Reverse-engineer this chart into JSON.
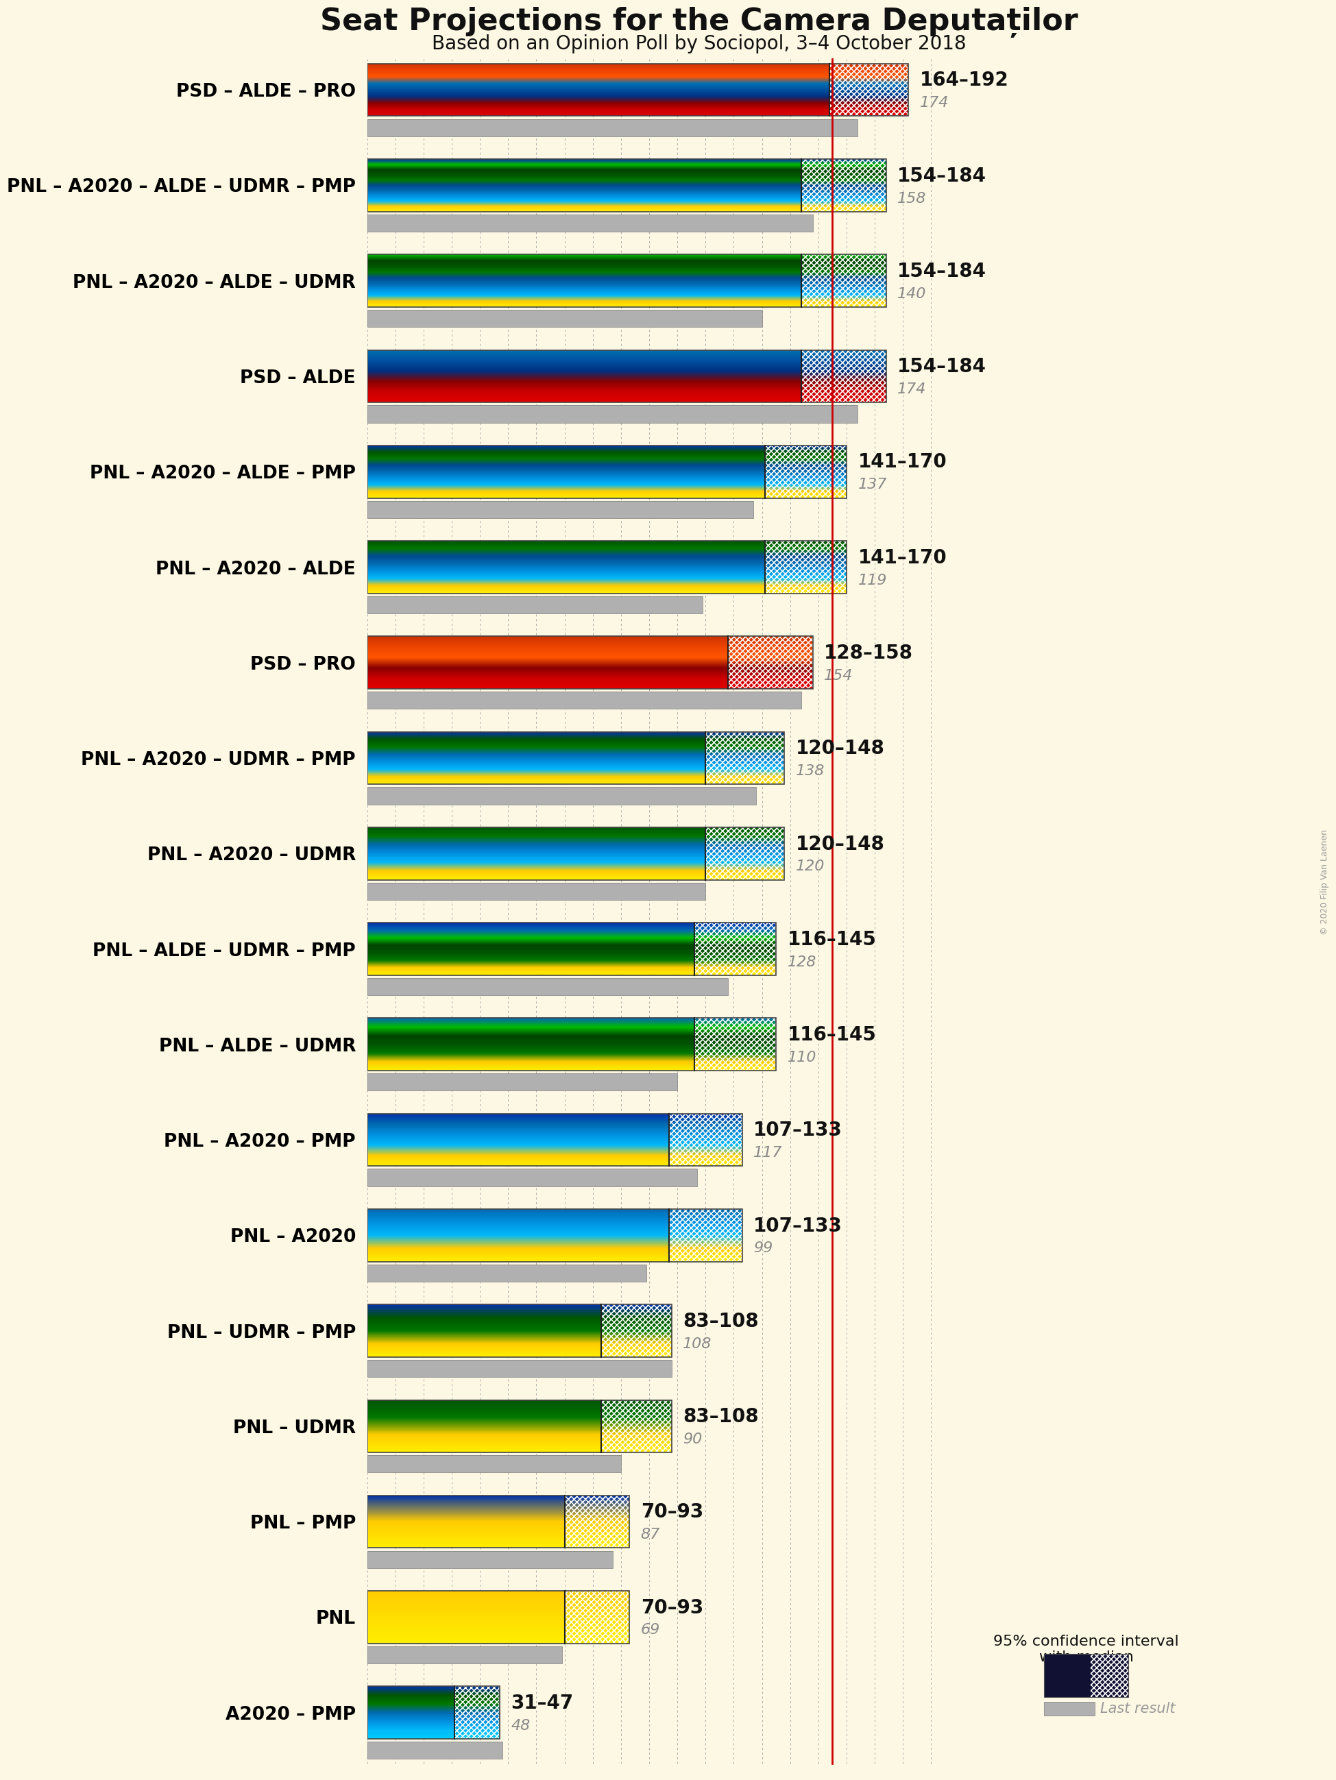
{
  "title": "Seat Projections for the Camera Deputaților",
  "subtitle": "Based on an Opinion Poll by Sociopol, 3–4 October 2018",
  "copyright": "© 2020 Filip Van Laenen",
  "background_color": "#fdf8e4",
  "majority_line": 165,
  "xmax": 200,
  "coalitions": [
    {
      "name": "PSD – ALDE – PRO",
      "ci_low": 164,
      "ci_high": 192,
      "median": 174,
      "last_result": 174,
      "underline": false,
      "bar_colors": [
        "#e00000",
        "#cc0000",
        "#880000",
        "#003080",
        "#0050a0",
        "#0070b0",
        "#ff5500",
        "#ee4400",
        "#cc3300"
      ]
    },
    {
      "name": "PNL – A2020 – ALDE – UDMR – PMP",
      "ci_low": 154,
      "ci_high": 184,
      "median": 158,
      "last_result": 158,
      "underline": true,
      "bar_colors": [
        "#ffee00",
        "#ffcc00",
        "#00b8f8",
        "#0090e0",
        "#006ab0",
        "#004a90",
        "#007700",
        "#005500",
        "#004400",
        "#00bb00",
        "#0033aa"
      ]
    },
    {
      "name": "PNL – A2020 – ALDE – UDMR",
      "ci_low": 154,
      "ci_high": 184,
      "median": 140,
      "last_result": 140,
      "underline": false,
      "bar_colors": [
        "#ffee00",
        "#ffcc00",
        "#00b8f8",
        "#0090e0",
        "#006ab0",
        "#004a90",
        "#007700",
        "#005500",
        "#004400",
        "#00bb00"
      ]
    },
    {
      "name": "PSD – ALDE",
      "ci_low": 154,
      "ci_high": 184,
      "median": 174,
      "last_result": 174,
      "underline": false,
      "bar_colors": [
        "#e00000",
        "#cc0000",
        "#880000",
        "#003080",
        "#0050a0",
        "#0070b0"
      ]
    },
    {
      "name": "PNL – A2020 – ALDE – PMP",
      "ci_low": 141,
      "ci_high": 170,
      "median": 137,
      "last_result": 137,
      "underline": false,
      "bar_colors": [
        "#ffee00",
        "#ffcc00",
        "#00b8f8",
        "#0090e0",
        "#006ab0",
        "#004a90",
        "#007700",
        "#005500",
        "#0033aa"
      ]
    },
    {
      "name": "PNL – A2020 – ALDE",
      "ci_low": 141,
      "ci_high": 170,
      "median": 119,
      "last_result": 119,
      "underline": false,
      "bar_colors": [
        "#ffee00",
        "#ffcc00",
        "#00b8f8",
        "#0090e0",
        "#006ab0",
        "#004a90",
        "#007700",
        "#005500"
      ]
    },
    {
      "name": "PSD – PRO",
      "ci_low": 128,
      "ci_high": 158,
      "median": 154,
      "last_result": 154,
      "underline": false,
      "bar_colors": [
        "#e00000",
        "#cc0000",
        "#880000",
        "#ff5500",
        "#ee4400",
        "#cc3300"
      ]
    },
    {
      "name": "PNL – A2020 – UDMR – PMP",
      "ci_low": 120,
      "ci_high": 148,
      "median": 138,
      "last_result": 138,
      "underline": false,
      "bar_colors": [
        "#ffee00",
        "#ffcc00",
        "#00b8f8",
        "#0090e0",
        "#006ab0",
        "#007700",
        "#005500",
        "#0033aa"
      ]
    },
    {
      "name": "PNL – A2020 – UDMR",
      "ci_low": 120,
      "ci_high": 148,
      "median": 120,
      "last_result": 120,
      "underline": false,
      "bar_colors": [
        "#ffee00",
        "#ffcc00",
        "#00b8f8",
        "#0090e0",
        "#006ab0",
        "#007700",
        "#005500"
      ]
    },
    {
      "name": "PNL – ALDE – UDMR – PMP",
      "ci_low": 116,
      "ci_high": 145,
      "median": 128,
      "last_result": 128,
      "underline": false,
      "bar_colors": [
        "#ffee00",
        "#ffcc00",
        "#007700",
        "#005500",
        "#004400",
        "#00bb00",
        "#006ab0",
        "#0033aa"
      ]
    },
    {
      "name": "PNL – ALDE – UDMR",
      "ci_low": 116,
      "ci_high": 145,
      "median": 110,
      "last_result": 110,
      "underline": false,
      "bar_colors": [
        "#ffee00",
        "#ffcc00",
        "#007700",
        "#005500",
        "#004400",
        "#00bb00",
        "#006ab0"
      ]
    },
    {
      "name": "PNL – A2020 – PMP",
      "ci_low": 107,
      "ci_high": 133,
      "median": 117,
      "last_result": 117,
      "underline": false,
      "bar_colors": [
        "#ffee00",
        "#ffcc00",
        "#00b8f8",
        "#0090e0",
        "#006ab0",
        "#0033aa"
      ]
    },
    {
      "name": "PNL – A2020",
      "ci_low": 107,
      "ci_high": 133,
      "median": 99,
      "last_result": 99,
      "underline": false,
      "bar_colors": [
        "#ffee00",
        "#ffcc00",
        "#00b8f8",
        "#0090e0",
        "#006ab0"
      ]
    },
    {
      "name": "PNL – UDMR – PMP",
      "ci_low": 83,
      "ci_high": 108,
      "median": 108,
      "last_result": 108,
      "underline": false,
      "bar_colors": [
        "#ffee00",
        "#ffcc00",
        "#007700",
        "#005500",
        "#0033aa"
      ]
    },
    {
      "name": "PNL – UDMR",
      "ci_low": 83,
      "ci_high": 108,
      "median": 90,
      "last_result": 90,
      "underline": false,
      "bar_colors": [
        "#ffee00",
        "#ffcc00",
        "#007700",
        "#005500"
      ]
    },
    {
      "name": "PNL – PMP",
      "ci_low": 70,
      "ci_high": 93,
      "median": 87,
      "last_result": 87,
      "underline": false,
      "bar_colors": [
        "#ffee00",
        "#ffcc00",
        "#0033aa"
      ]
    },
    {
      "name": "PNL",
      "ci_low": 70,
      "ci_high": 93,
      "median": 69,
      "last_result": 69,
      "underline": true,
      "bar_colors": [
        "#ffee00",
        "#ffcc00"
      ]
    },
    {
      "name": "A2020 – PMP",
      "ci_low": 31,
      "ci_high": 47,
      "median": 48,
      "last_result": 48,
      "underline": false,
      "bar_colors": [
        "#00ccff",
        "#00b8f8",
        "#0090e0",
        "#006ab0",
        "#007700",
        "#005500",
        "#0033aa"
      ]
    }
  ]
}
